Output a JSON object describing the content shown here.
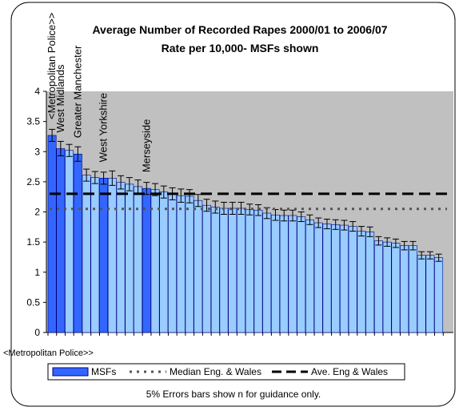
{
  "chart_data": {
    "type": "bar",
    "title": "Average Number of Recorded Rapes 2000/01 to 2006/07",
    "subtitle": "Rate per 10,000- MSFs shown",
    "xlabel": "",
    "ylabel": "",
    "ylim": [
      0,
      4
    ],
    "yticks": [
      "0",
      "0.5",
      "1",
      "1.5",
      "2",
      "2.5",
      "3",
      "3.5",
      "4"
    ],
    "x_category_label": "<Metropolitan Police>>",
    "values": [
      3.27,
      3.05,
      3.02,
      2.96,
      2.61,
      2.57,
      2.56,
      2.56,
      2.49,
      2.46,
      2.42,
      2.39,
      2.37,
      2.33,
      2.3,
      2.27,
      2.26,
      2.19,
      2.11,
      2.08,
      2.06,
      2.06,
      2.06,
      2.04,
      2.03,
      1.98,
      1.95,
      1.94,
      1.94,
      1.92,
      1.87,
      1.82,
      1.8,
      1.79,
      1.78,
      1.76,
      1.68,
      1.67,
      1.52,
      1.5,
      1.48,
      1.44,
      1.44,
      1.28,
      1.28,
      1.24
    ],
    "errors": [
      0.1,
      0.12,
      0.1,
      0.12,
      0.1,
      0.1,
      0.1,
      0.12,
      0.11,
      0.11,
      0.11,
      0.1,
      0.1,
      0.1,
      0.1,
      0.11,
      0.11,
      0.1,
      0.1,
      0.1,
      0.1,
      0.1,
      0.1,
      0.09,
      0.09,
      0.09,
      0.09,
      0.09,
      0.09,
      0.08,
      0.08,
      0.08,
      0.08,
      0.08,
      0.08,
      0.08,
      0.08,
      0.08,
      0.07,
      0.07,
      0.07,
      0.07,
      0.07,
      0.06,
      0.06,
      0.06
    ],
    "msf_indices": [
      0,
      1,
      3,
      6,
      11
    ],
    "msf_labels": [
      {
        "index": 0,
        "text": "<Metropolitan Police>>"
      },
      {
        "index": 1,
        "text": "West Midlands"
      },
      {
        "index": 3,
        "text": "Greater Manchester"
      },
      {
        "index": 6,
        "text": "West Yorkshire"
      },
      {
        "index": 11,
        "text": "Merseyside"
      }
    ],
    "median": 2.05,
    "average": 2.3,
    "grid": false,
    "legend_placement": "bottom",
    "legend": [
      {
        "name": "MSFs",
        "style": "bar"
      },
      {
        "name": "Median Eng. & Wales",
        "style": "dotted"
      },
      {
        "name": "Ave. Eng & Wales",
        "style": "dashed"
      }
    ],
    "footnote": "5% Errors bars show n for guidance only.",
    "colors": {
      "msf_bar": "#3366ff",
      "other_bar": "#99ccff",
      "plot_area": "#c0c0c0",
      "bar_outline": "#000080",
      "median_line": "#555555",
      "average_line": "#000000"
    }
  }
}
